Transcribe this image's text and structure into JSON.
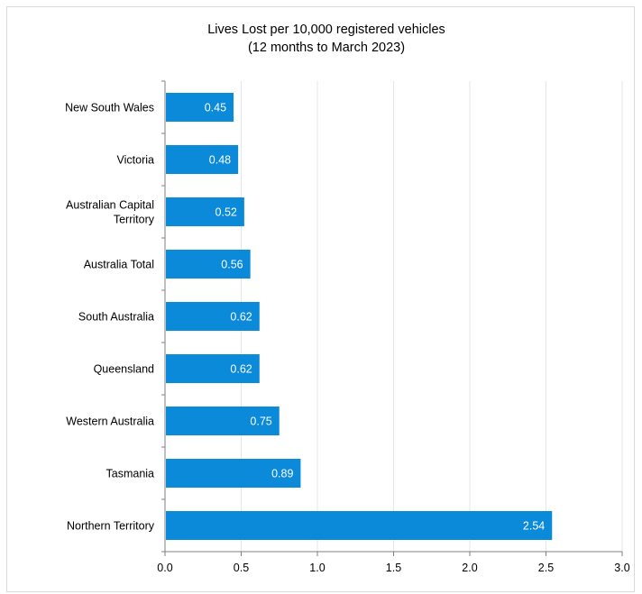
{
  "chart_data": {
    "type": "bar",
    "orientation": "horizontal",
    "title": "Lives Lost per 10,000 registered vehicles",
    "subtitle": "(12 months to March 2023)",
    "categories": [
      [
        "New South Wales"
      ],
      [
        "Victoria"
      ],
      [
        "Australian Capital",
        "Territory"
      ],
      [
        "Australia Total"
      ],
      [
        "South Australia"
      ],
      [
        "Queensland"
      ],
      [
        "Western Australia"
      ],
      [
        "Tasmania"
      ],
      [
        "Northern Territory"
      ]
    ],
    "values": [
      0.45,
      0.48,
      0.52,
      0.56,
      0.62,
      0.62,
      0.75,
      0.89,
      2.54
    ],
    "data_labels": [
      "0.45",
      "0.48",
      "0.52",
      "0.56",
      "0.62",
      "0.62",
      "0.75",
      "0.89",
      "2.54"
    ],
    "xlim": [
      0,
      3
    ],
    "xticks": [
      0,
      0.5,
      1,
      1.5,
      2,
      2.5,
      3
    ],
    "xtick_labels": [
      "0.0",
      "0.5",
      "1.0",
      "1.5",
      "2.0",
      "2.5",
      "3.0"
    ],
    "grid": "vertical",
    "legend": "none",
    "bar_color": "#0a8ad8",
    "grid_color": "#e6e6e6",
    "axis_color": "#7f7f7f"
  }
}
